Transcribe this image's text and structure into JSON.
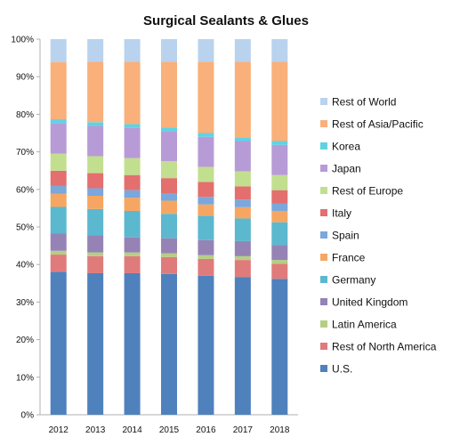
{
  "chart_data": {
    "type": "bar",
    "stacked": "percent",
    "title": "Surgical Sealants & Glues",
    "categories": [
      "2012",
      "2013",
      "2014",
      "2015",
      "2016",
      "2017",
      "2018"
    ],
    "y_ticks": [
      "0%",
      "10%",
      "20%",
      "30%",
      "40%",
      "50%",
      "60%",
      "70%",
      "80%",
      "90%",
      "100%"
    ],
    "ylim": [
      0,
      100
    ],
    "grid": false,
    "legend_position": "right",
    "series": [
      {
        "name": "U.S.",
        "color": "#4f81bd",
        "values": [
          37.5,
          37.5,
          37.5,
          37.5,
          37.0,
          36.5,
          36.0
        ]
      },
      {
        "name": "Rest of North America",
        "color": "#e07b7b",
        "values": [
          4.5,
          4.5,
          4.5,
          4.5,
          4.5,
          4.5,
          4.0
        ]
      },
      {
        "name": "Latin America",
        "color": "#b5cf82",
        "values": [
          1.0,
          1.0,
          1.0,
          1.0,
          1.0,
          1.0,
          1.0
        ]
      },
      {
        "name": "United Kingdom",
        "color": "#9683b5",
        "values": [
          4.5,
          4.5,
          4.0,
          4.0,
          4.0,
          4.0,
          4.0
        ]
      },
      {
        "name": "Germany",
        "color": "#5bb8cf",
        "values": [
          7.0,
          7.0,
          7.0,
          6.5,
          6.5,
          6.0,
          6.0
        ]
      },
      {
        "name": "France",
        "color": "#f6a663",
        "values": [
          3.5,
          3.5,
          3.5,
          3.5,
          3.0,
          3.0,
          3.0
        ]
      },
      {
        "name": "Spain",
        "color": "#7aa7dc",
        "values": [
          2.0,
          2.0,
          2.0,
          2.0,
          2.0,
          2.0,
          2.0
        ]
      },
      {
        "name": "Italy",
        "color": "#e36f6f",
        "values": [
          4.0,
          4.0,
          4.0,
          4.0,
          4.0,
          3.5,
          3.5
        ]
      },
      {
        "name": "Rest of Europe",
        "color": "#c2df8f",
        "values": [
          4.5,
          4.5,
          4.5,
          4.5,
          4.0,
          4.0,
          4.0
        ]
      },
      {
        "name": "Japan",
        "color": "#b79bd6",
        "values": [
          8.0,
          8.0,
          8.0,
          8.0,
          8.0,
          8.0,
          8.0
        ]
      },
      {
        "name": "Korea",
        "color": "#5fd3e3",
        "values": [
          1.0,
          1.0,
          1.0,
          1.0,
          1.0,
          1.0,
          1.0
        ]
      },
      {
        "name": "Rest of Asia/Pacific",
        "color": "#f9b07a",
        "values": [
          15.0,
          16.0,
          16.5,
          17.5,
          19.0,
          20.0,
          21.0
        ]
      },
      {
        "name": "Rest of World",
        "color": "#b9d2ee",
        "values": [
          6.0,
          6.0,
          6.0,
          6.0,
          6.0,
          6.0,
          6.0
        ]
      }
    ]
  }
}
